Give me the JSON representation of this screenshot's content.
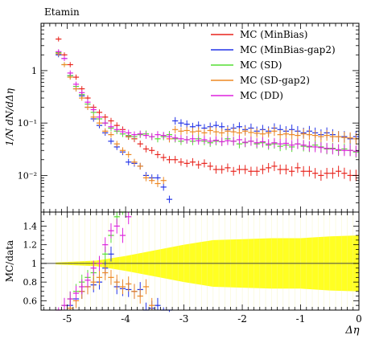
{
  "chart_data": [
    {
      "type": "line",
      "title": "Etamin",
      "ylabel": "1/N dN/dΔη",
      "yscale": "log",
      "ylim": [
        0.002,
        8
      ],
      "xlim": [
        -5.45,
        0
      ],
      "y_tick_labels": [
        "1",
        "10⁻¹",
        "10⁻²"
      ],
      "y_tick_values": [
        1,
        0.1,
        0.01
      ],
      "legend_position": "top-right",
      "series": [
        {
          "name": "MC (MinBias)",
          "color": "#e8231c",
          "x": [
            -5.15,
            -5.05,
            -4.95,
            -4.85,
            -4.75,
            -4.65,
            -4.55,
            -4.45,
            -4.35,
            -4.25,
            -4.15,
            -4.05,
            -3.95,
            -3.85,
            -3.75,
            -3.65,
            -3.55,
            -3.45,
            -3.35,
            -3.25,
            -3.15,
            -3.05,
            -2.95,
            -2.85,
            -2.75,
            -2.65,
            -2.55,
            -2.45,
            -2.35,
            -2.25,
            -2.15,
            -2.05,
            -1.95,
            -1.85,
            -1.75,
            -1.65,
            -1.55,
            -1.45,
            -1.35,
            -1.25,
            -1.15,
            -1.05,
            -0.95,
            -0.85,
            -0.75,
            -0.65,
            -0.55,
            -0.45,
            -0.35,
            -0.25,
            -0.15,
            -0.05
          ],
          "values": [
            4.0,
            2.0,
            1.3,
            0.75,
            0.45,
            0.3,
            0.2,
            0.16,
            0.13,
            0.11,
            0.09,
            0.075,
            0.055,
            0.05,
            0.04,
            0.032,
            0.03,
            0.025,
            0.022,
            0.02,
            0.02,
            0.018,
            0.017,
            0.018,
            0.016,
            0.017,
            0.015,
            0.013,
            0.013,
            0.014,
            0.012,
            0.013,
            0.013,
            0.012,
            0.012,
            0.013,
            0.014,
            0.015,
            0.013,
            0.013,
            0.012,
            0.014,
            0.012,
            0.012,
            0.011,
            0.01,
            0.011,
            0.011,
            0.012,
            0.011,
            0.01,
            0.01
          ]
        },
        {
          "name": "MC (MinBias-gap2)",
          "color": "#2233e8",
          "x": [
            -5.15,
            -5.05,
            -4.95,
            -4.85,
            -4.75,
            -4.65,
            -4.55,
            -4.45,
            -4.35,
            -4.25,
            -4.15,
            -4.05,
            -3.95,
            -3.85,
            -3.75,
            -3.65,
            -3.55,
            -3.45,
            -3.35,
            -3.25,
            -3.15,
            -3.05,
            -2.95,
            -2.85,
            -2.75,
            -2.65,
            -2.55,
            -2.45,
            -2.35,
            -2.25,
            -2.15,
            -2.05,
            -1.95,
            -1.85,
            -1.75,
            -1.65,
            -1.55,
            -1.45,
            -1.35,
            -1.25,
            -1.15,
            -1.05,
            -0.95,
            -0.85,
            -0.75,
            -0.65,
            -0.55,
            -0.45,
            -0.35,
            -0.25,
            -0.15,
            -0.05
          ],
          "values": [
            2.0,
            1.7,
            0.8,
            0.45,
            0.33,
            0.2,
            0.12,
            0.09,
            0.065,
            0.045,
            0.035,
            0.028,
            0.018,
            0.017,
            0.015,
            0.01,
            0.009,
            0.009,
            0.006,
            0.0035,
            0.11,
            0.1,
            0.095,
            0.085,
            0.09,
            0.08,
            0.085,
            0.09,
            0.085,
            0.075,
            0.08,
            0.085,
            0.075,
            0.08,
            0.07,
            0.075,
            0.07,
            0.08,
            0.075,
            0.07,
            0.075,
            0.07,
            0.065,
            0.07,
            0.065,
            0.06,
            0.065,
            0.06,
            0.055,
            0.055,
            0.05,
            0.055
          ]
        },
        {
          "name": "MC (SD)",
          "color": "#55dd33",
          "x": [
            -5.15,
            -5.05,
            -4.95,
            -4.85,
            -4.75,
            -4.65,
            -4.55,
            -4.45,
            -4.35,
            -4.25,
            -4.15,
            -4.05,
            -3.95,
            -3.85,
            -3.75,
            -3.65,
            -3.55,
            -3.45,
            -3.35,
            -3.25,
            -3.15,
            -3.05,
            -2.95,
            -2.85,
            -2.75,
            -2.65,
            -2.55,
            -2.45,
            -2.35,
            -2.25,
            -2.15,
            -2.05,
            -1.95,
            -1.85,
            -1.75,
            -1.65,
            -1.55,
            -1.45,
            -1.35,
            -1.25,
            -1.15,
            -1.05,
            -0.95,
            -0.85,
            -0.75,
            -0.65,
            -0.55,
            -0.45,
            -0.35,
            -0.25,
            -0.15,
            -0.05
          ],
          "values": [
            2.2,
            1.3,
            0.8,
            0.5,
            0.35,
            0.23,
            0.16,
            0.12,
            0.1,
            0.08,
            0.07,
            0.062,
            0.058,
            0.055,
            0.06,
            0.062,
            0.055,
            0.05,
            0.055,
            0.06,
            0.05,
            0.045,
            0.048,
            0.045,
            0.05,
            0.045,
            0.042,
            0.045,
            0.044,
            0.05,
            0.045,
            0.04,
            0.042,
            0.045,
            0.04,
            0.042,
            0.038,
            0.04,
            0.036,
            0.038,
            0.035,
            0.04,
            0.036,
            0.035,
            0.038,
            0.035,
            0.032,
            0.033,
            0.03,
            0.032,
            0.03,
            0.028
          ]
        },
        {
          "name": "MC (SD-gap2)",
          "color": "#ee8822",
          "x": [
            -5.15,
            -5.05,
            -4.95,
            -4.85,
            -4.75,
            -4.65,
            -4.55,
            -4.45,
            -4.35,
            -4.25,
            -4.15,
            -4.05,
            -3.95,
            -3.85,
            -3.75,
            -3.65,
            -3.55,
            -3.45,
            -3.35,
            -3.25,
            -3.15,
            -3.05,
            -2.95,
            -2.85,
            -2.75,
            -2.65,
            -2.55,
            -2.45,
            -2.35,
            -2.25,
            -2.15,
            -2.05,
            -1.95,
            -1.85,
            -1.75,
            -1.65,
            -1.55,
            -1.45,
            -1.35,
            -1.25,
            -1.15,
            -1.05,
            -0.95,
            -0.85,
            -0.75,
            -0.65,
            -0.55,
            -0.45,
            -0.35,
            -0.25,
            -0.15,
            -0.05
          ],
          "values": [
            2.1,
            1.3,
            0.75,
            0.45,
            0.3,
            0.2,
            0.13,
            0.1,
            0.07,
            0.06,
            0.04,
            0.03,
            0.025,
            0.018,
            0.015,
            0.009,
            0.008,
            0.007,
            0.008,
            0.05,
            0.075,
            0.07,
            0.072,
            0.068,
            0.07,
            0.065,
            0.072,
            0.068,
            0.065,
            0.07,
            0.068,
            0.065,
            0.07,
            0.066,
            0.064,
            0.062,
            0.065,
            0.07,
            0.06,
            0.062,
            0.06,
            0.058,
            0.062,
            0.06,
            0.058,
            0.055,
            0.058,
            0.055,
            0.055,
            0.053,
            0.052,
            0.05
          ]
        },
        {
          "name": "MC (DD)",
          "color": "#dd22dd",
          "x": [
            -5.15,
            -5.05,
            -4.95,
            -4.85,
            -4.75,
            -4.65,
            -4.55,
            -4.45,
            -4.35,
            -4.25,
            -4.15,
            -4.05,
            -3.95,
            -3.85,
            -3.75,
            -3.65,
            -3.55,
            -3.45,
            -3.35,
            -3.25,
            -3.15,
            -3.05,
            -2.95,
            -2.85,
            -2.75,
            -2.65,
            -2.55,
            -2.45,
            -2.35,
            -2.25,
            -2.15,
            -2.05,
            -1.95,
            -1.85,
            -1.75,
            -1.65,
            -1.55,
            -1.45,
            -1.35,
            -1.25,
            -1.15,
            -1.05,
            -0.95,
            -0.85,
            -0.75,
            -0.65,
            -0.55,
            -0.45,
            -0.35,
            -0.25,
            -0.15,
            -0.05
          ],
          "values": [
            2.3,
            1.7,
            0.9,
            0.55,
            0.38,
            0.25,
            0.18,
            0.13,
            0.1,
            0.085,
            0.075,
            0.068,
            0.065,
            0.06,
            0.062,
            0.058,
            0.055,
            0.06,
            0.058,
            0.055,
            0.052,
            0.05,
            0.048,
            0.05,
            0.046,
            0.048,
            0.045,
            0.047,
            0.044,
            0.046,
            0.045,
            0.048,
            0.043,
            0.045,
            0.042,
            0.044,
            0.04,
            0.042,
            0.04,
            0.041,
            0.038,
            0.04,
            0.038,
            0.036,
            0.035,
            0.034,
            0.033,
            0.032,
            0.031,
            0.03,
            0.03,
            0.029
          ]
        }
      ]
    },
    {
      "type": "line",
      "title": "",
      "xlabel": "Δη",
      "ylabel": "MC/data",
      "xlim": [
        -5.45,
        0
      ],
      "ylim": [
        0.5,
        1.55
      ],
      "x_tick_labels": [
        "-5",
        "-4",
        "-3",
        "-2",
        "-1",
        "0"
      ],
      "x_tick_values": [
        -5,
        -4,
        -3,
        -2,
        -1,
        0
      ],
      "y_tick_labels": [
        "0.6",
        "0.8",
        "1",
        "1.2",
        "1.4"
      ],
      "y_tick_values": [
        0.6,
        0.8,
        1.0,
        1.2,
        1.4
      ],
      "reference_line": 1.0,
      "uncertainty_band_color": "#ffff22",
      "uncertainty_band": {
        "x": [
          -5.2,
          -4.5,
          -4.0,
          -3.5,
          -3.0,
          -2.5,
          -2.0,
          -1.5,
          -1.0,
          -0.5,
          0.0
        ],
        "halfwidth": [
          0.01,
          0.03,
          0.08,
          0.14,
          0.2,
          0.25,
          0.26,
          0.27,
          0.27,
          0.29,
          0.3
        ]
      },
      "series": [
        {
          "name": "MC (MinBias-gap2)",
          "color": "#2233e8",
          "x": [
            -4.95,
            -4.85,
            -4.75,
            -4.65,
            -4.55,
            -4.45,
            -4.35,
            -4.25,
            -4.15,
            -4.05,
            -3.95,
            -3.85,
            -3.75,
            -3.65,
            -3.55,
            -3.45,
            -3.35,
            -3.25
          ],
          "values": [
            0.55,
            0.62,
            0.7,
            0.75,
            0.77,
            0.8,
            0.95,
            1.1,
            0.75,
            0.73,
            0.72,
            0.7,
            0.72,
            0.5,
            0.52,
            0.55,
            0.45,
            0.4
          ]
        },
        {
          "name": "MC (SD)",
          "color": "#55dd33",
          "x": [
            -5.05,
            -4.95,
            -4.85,
            -4.75,
            -4.65,
            -4.55,
            -4.45,
            -4.35,
            -4.25,
            -4.15,
            -4.05
          ],
          "values": [
            0.55,
            0.62,
            0.7,
            0.8,
            0.85,
            0.9,
            1.0,
            1.1,
            1.3,
            1.5,
            1.6
          ]
        },
        {
          "name": "MC (SD-gap2)",
          "color": "#ee8822",
          "x": [
            -4.95,
            -4.85,
            -4.75,
            -4.65,
            -4.55,
            -4.45,
            -4.35,
            -4.25,
            -4.15,
            -4.05,
            -3.95,
            -3.85,
            -3.75,
            -3.65,
            -3.55
          ],
          "values": [
            0.52,
            0.6,
            0.7,
            0.75,
            0.8,
            0.85,
            0.9,
            0.85,
            0.8,
            0.75,
            0.78,
            0.7,
            0.65,
            0.75,
            0.55
          ]
        },
        {
          "name": "MC (DD)",
          "color": "#dd22dd",
          "x": [
            -5.15,
            -5.05,
            -4.95,
            -4.85,
            -4.75,
            -4.65,
            -4.55,
            -4.45,
            -4.35,
            -4.25,
            -4.15,
            -4.05,
            -3.95
          ],
          "values": [
            0.45,
            0.55,
            0.62,
            0.68,
            0.75,
            0.82,
            0.95,
            1.0,
            1.2,
            1.35,
            1.4,
            1.3,
            1.5
          ]
        }
      ]
    }
  ]
}
